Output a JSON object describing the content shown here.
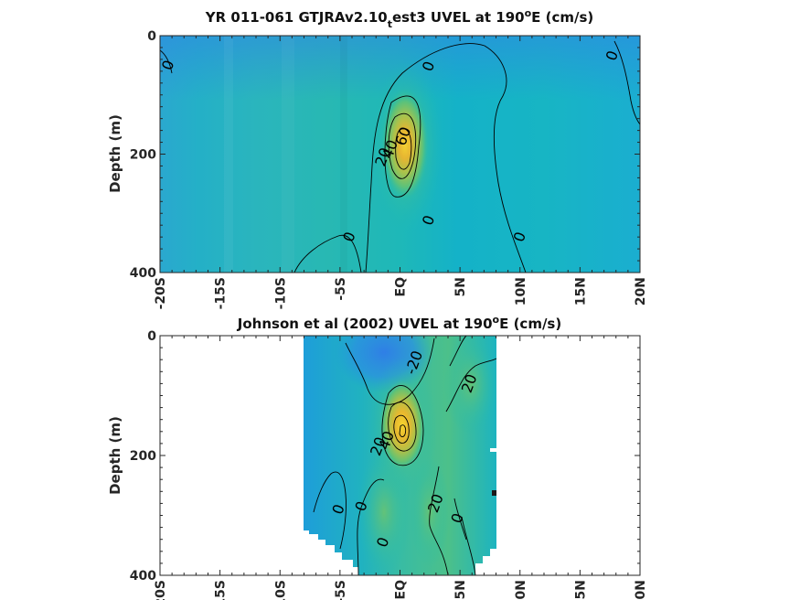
{
  "colors": {
    "deep_blue": "#2f86e4",
    "blue": "#1f9ee0",
    "teal": "#16b3c4",
    "cyan_green": "#20bcaf",
    "green": "#5cc27a",
    "yellow_green": "#a9c24c",
    "orange": "#e6b531",
    "yellow": "#f4d233"
  },
  "chart_data": [
    {
      "type": "heatmap",
      "variant": "contour-filled section",
      "title_parts": {
        "before": "YR 011-061 GTJRAv2.10",
        "sub": "t",
        "after": "est3 UVEL at 190",
        "sup": "o",
        "tail": "E (cm/s)"
      },
      "xlabel": "",
      "ylabel": "Depth (m)",
      "xlim": [
        -20,
        20
      ],
      "ylim": [
        400,
        0
      ],
      "xticks": [
        -20,
        -15,
        -10,
        -5,
        0,
        5,
        10,
        15,
        20
      ],
      "xtick_labels": [
        "-20S",
        "-15S",
        "-10S",
        "-5S",
        "EQ",
        "5N",
        "10N",
        "15N",
        "20N"
      ],
      "yticks": [
        0,
        200,
        400
      ],
      "ytick_labels": [
        "0",
        "200",
        "400"
      ],
      "undercurrent_core": {
        "latitude": 0.5,
        "depth": 160,
        "max_speed": 70
      },
      "contour_levels": [
        0,
        20,
        40,
        60
      ],
      "contour_labels": [
        {
          "text": "0",
          "lat": -19.3,
          "depth": 50
        },
        {
          "text": "0",
          "lat": 2.4,
          "depth": 52
        },
        {
          "text": "0",
          "lat": 17.7,
          "depth": 34
        },
        {
          "text": "60",
          "lat": 0.3,
          "depth": 170
        },
        {
          "text": "40",
          "lat": -0.8,
          "depth": 192
        },
        {
          "text": "20",
          "lat": -1.4,
          "depth": 205
        },
        {
          "text": "0",
          "lat": 2.4,
          "depth": 312
        },
        {
          "text": "0",
          "lat": -4.2,
          "depth": 340
        },
        {
          "text": "0",
          "lat": 10.0,
          "depth": 340
        }
      ]
    },
    {
      "type": "heatmap",
      "variant": "contour-filled section (observations)",
      "title_parts": {
        "before": "Johnson et al (2002) UVEL at 190",
        "sub": "",
        "after": "",
        "sup": "o",
        "tail": "E (cm/s)"
      },
      "xlabel": "",
      "ylabel": "Depth (m)",
      "xlim": [
        -20,
        20
      ],
      "ylim": [
        400,
        0
      ],
      "data_lat_range": [
        -8,
        8
      ],
      "xticks": [
        -20,
        -15,
        -10,
        -5,
        0,
        5,
        10,
        15,
        20
      ],
      "xtick_labels": [
        "-20S",
        "-15S",
        "-10S",
        "-5S",
        "EQ",
        "5N",
        "10N",
        "15N",
        "20N"
      ],
      "yticks": [
        0,
        200,
        400
      ],
      "ytick_labels": [
        "0",
        "200",
        "400"
      ],
      "undercurrent_core": {
        "latitude": 0.2,
        "depth": 155,
        "max_speed": 70
      },
      "contour_levels": [
        -20,
        0,
        20,
        40,
        60
      ],
      "contour_labels": [
        {
          "text": "-20",
          "lat": 1.2,
          "depth": 45
        },
        {
          "text": "20",
          "lat": 5.8,
          "depth": 80
        },
        {
          "text": "40",
          "lat": -1.1,
          "depth": 175
        },
        {
          "text": "20",
          "lat": -1.8,
          "depth": 185
        },
        {
          "text": "0",
          "lat": -5.1,
          "depth": 290
        },
        {
          "text": "0",
          "lat": -3.2,
          "depth": 285
        },
        {
          "text": "20",
          "lat": 3.0,
          "depth": 280
        },
        {
          "text": "0",
          "lat": 4.8,
          "depth": 305
        },
        {
          "text": "0",
          "lat": -1.4,
          "depth": 345
        }
      ]
    }
  ]
}
